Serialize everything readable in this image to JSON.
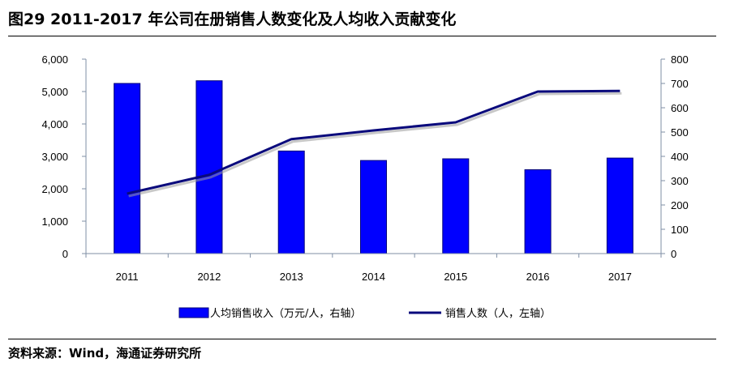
{
  "header": {
    "title": "图29 2011-2017 年公司在册销售人数变化及人均收入贡献变化"
  },
  "footer": {
    "source": "资料来源：Wind，海通证券研究所"
  },
  "colors": {
    "bar": "#0000ff",
    "bar_edge": "#00007a",
    "line": "#0a0a7c",
    "axis": "#7f8fa6"
  },
  "chart_data": {
    "type": "bar",
    "title": "",
    "categories": [
      "2011",
      "2012",
      "2013",
      "2014",
      "2015",
      "2016",
      "2017"
    ],
    "series": [
      {
        "name": "人均销售收入（万元/人，右轴）",
        "kind": "bar",
        "axis": "right",
        "values": [
          700,
          711,
          422,
          383,
          390,
          345,
          393
        ]
      },
      {
        "name": "销售人数（人，左轴）",
        "kind": "line",
        "axis": "left",
        "values": [
          1850,
          2430,
          3530,
          3800,
          4050,
          5000,
          5020
        ]
      }
    ],
    "y_left": {
      "ylim": [
        0,
        6000
      ],
      "ticks": [
        "0",
        "1,000",
        "2,000",
        "3,000",
        "4,000",
        "5,000",
        "6,000"
      ]
    },
    "y_right": {
      "ylim": [
        0,
        800
      ],
      "ticks": [
        "0",
        "100",
        "200",
        "300",
        "400",
        "500",
        "600",
        "700",
        "800"
      ]
    },
    "legend": {
      "position": "bottom"
    }
  }
}
